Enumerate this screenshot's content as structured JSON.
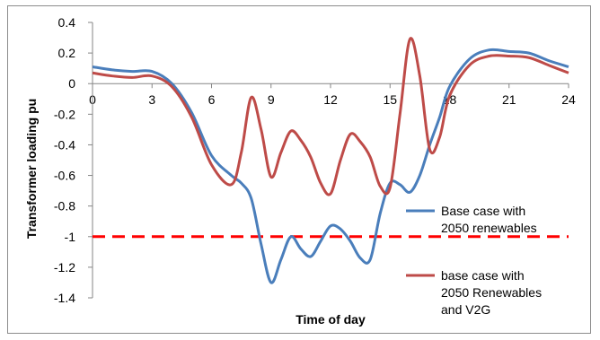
{
  "chart_data": {
    "type": "line",
    "title": "",
    "xlabel": "Time of day",
    "ylabel": "Transformer loading pu",
    "xlim": [
      0,
      24
    ],
    "ylim": [
      -1.4,
      0.4
    ],
    "x_ticks": [
      0,
      3,
      6,
      9,
      12,
      15,
      18,
      21,
      24
    ],
    "y_ticks": [
      0.4,
      0.2,
      0,
      -0.2,
      -0.4,
      -0.6,
      -0.8,
      -1,
      -1.2,
      -1.4
    ],
    "y_tick_labels": [
      "0.4",
      "0.2",
      "0",
      "-0.2",
      "-0.4",
      "-0.6",
      "-0.8",
      "-1",
      "-1.2",
      "-1.4"
    ],
    "grid": false,
    "legend_position": "right",
    "series": [
      {
        "name": "Base case with 2050 renewables",
        "legend_lines": [
          "Base case with",
          "2050 renewables"
        ],
        "color": "#4a7ebb",
        "x": [
          0,
          1,
          2,
          3,
          4,
          5,
          6,
          7,
          7.5,
          8,
          8.5,
          9,
          9.5,
          10,
          10.5,
          11,
          11.5,
          12,
          12.5,
          13,
          13.5,
          14,
          14.5,
          15,
          15.5,
          16,
          16.5,
          17,
          17.5,
          18,
          19,
          20,
          21,
          22,
          23,
          24
        ],
        "values": [
          0.11,
          0.09,
          0.08,
          0.08,
          0.0,
          -0.19,
          -0.47,
          -0.6,
          -0.65,
          -0.75,
          -1.05,
          -1.3,
          -1.15,
          -1.0,
          -1.08,
          -1.13,
          -1.03,
          -0.93,
          -0.95,
          -1.03,
          -1.14,
          -1.15,
          -0.85,
          -0.65,
          -0.66,
          -0.71,
          -0.6,
          -0.4,
          -0.22,
          -0.02,
          0.16,
          0.22,
          0.21,
          0.2,
          0.15,
          0.11
        ]
      },
      {
        "name": "base case with 2050 Renewables and V2G",
        "legend_lines": [
          "base case with",
          "2050 Renewables",
          "and V2G"
        ],
        "color": "#be4b48",
        "x": [
          0,
          1,
          2,
          3,
          4,
          5,
          6,
          7,
          7.5,
          8,
          8.5,
          9,
          9.5,
          10,
          10.5,
          11,
          11.5,
          12,
          12.5,
          13,
          13.5,
          14,
          14.5,
          15,
          15.5,
          16,
          16.5,
          17,
          17.5,
          18,
          19,
          20,
          21,
          22,
          23,
          24
        ],
        "values": [
          0.07,
          0.05,
          0.04,
          0.05,
          -0.02,
          -0.22,
          -0.53,
          -0.66,
          -0.45,
          -0.09,
          -0.3,
          -0.61,
          -0.45,
          -0.31,
          -0.37,
          -0.48,
          -0.65,
          -0.72,
          -0.5,
          -0.33,
          -0.38,
          -0.48,
          -0.67,
          -0.68,
          -0.2,
          0.29,
          0.05,
          -0.43,
          -0.35,
          -0.08,
          0.12,
          0.18,
          0.18,
          0.17,
          0.12,
          0.07
        ]
      },
      {
        "name": "",
        "color": "#ff0000",
        "dashed": true,
        "x": [
          0,
          24
        ],
        "values": [
          -1,
          -1
        ]
      }
    ]
  }
}
